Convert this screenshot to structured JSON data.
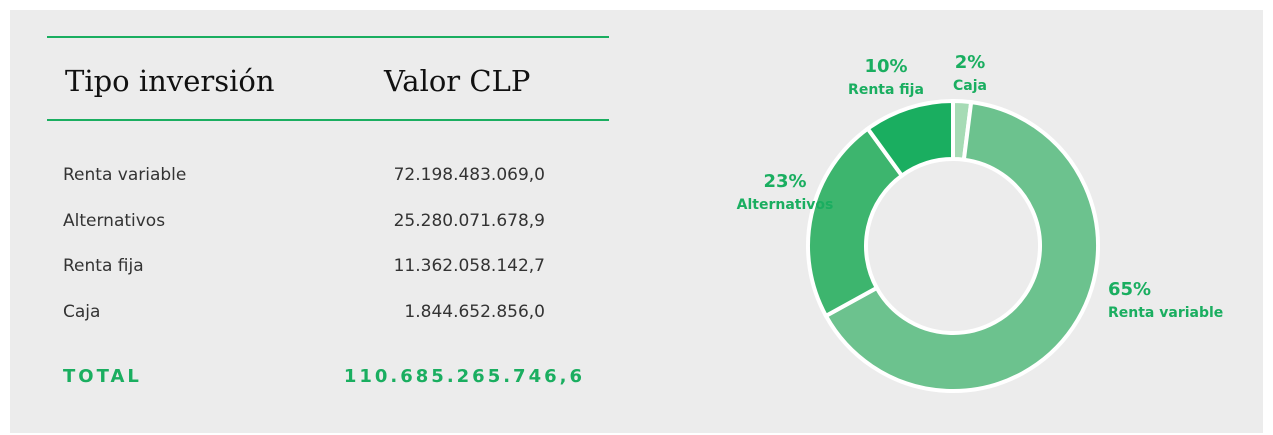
{
  "table": {
    "header": [
      "Tipo inversión",
      "Valor CLP"
    ],
    "rows": [
      [
        "Renta variable",
        "72.198.483.069,0"
      ],
      [
        "Alternativos",
        "25.280.071.678,9"
      ],
      [
        "Renta fija",
        "11.362.058.142,7"
      ],
      [
        "Caja",
        "1.844.652.856,0"
      ]
    ],
    "total": [
      "TOTAL",
      "110.685.265.746,6"
    ]
  },
  "chart_data": {
    "type": "pie",
    "donut": true,
    "series": [
      {
        "name": "Caja",
        "color": "#a6dbb5",
        "value": 2,
        "value_label": "2%"
      },
      {
        "name": "Renta variable",
        "color": "#6cc28e",
        "value": 65,
        "value_label": "65%"
      },
      {
        "name": "Alternativos",
        "color": "#3db56e",
        "value": 23,
        "value_label": "23%"
      },
      {
        "name": "Renta fija",
        "color": "#1aae60",
        "value": 10,
        "value_label": "10%"
      }
    ]
  }
}
